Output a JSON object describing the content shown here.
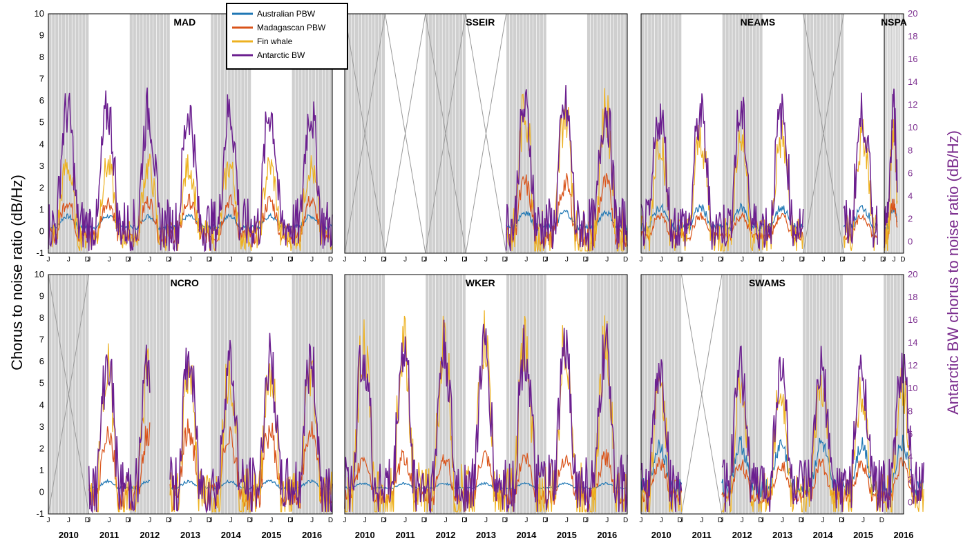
{
  "figure": {
    "ylabel_left": "Chorus to noise ratio (dB/Hz)",
    "ylabel_right": "Antarctic BW chorus to noise ratio (dB/Hz)",
    "right_axis_color": "#7b2d8e"
  },
  "chart_data": {
    "type": "line",
    "x_unit": "month",
    "years": [
      "2010",
      "2011",
      "2012",
      "2013",
      "2014",
      "2015",
      "2016"
    ],
    "month_ticks": [
      "J",
      "J",
      "D"
    ],
    "ylim_left": [
      -1,
      10
    ],
    "ylim_right": [
      -1,
      20
    ],
    "yticks_left": [
      "-1",
      "0",
      "1",
      "2",
      "3",
      "4",
      "5",
      "6",
      "7",
      "8",
      "9",
      "10"
    ],
    "yticks_right": [
      "0",
      "2",
      "4",
      "6",
      "8",
      "10",
      "12",
      "14",
      "16",
      "18",
      "20"
    ],
    "legend": [
      {
        "name": "Australian PBW",
        "color": "#1f77b4"
      },
      {
        "name": "Madagascan PBW",
        "color": "#d95319"
      },
      {
        "name": "Fin whale",
        "color": "#edb120"
      },
      {
        "name": "Antarctic BW",
        "color": "#6b1f8f"
      }
    ],
    "panels": [
      {
        "name": "MAD",
        "coverage": [
          [
            0,
            84
          ]
        ],
        "amplitude": [
          0.5,
          1.6,
          3.2,
          5.5
        ]
      },
      {
        "name": "SSEIR",
        "coverage": [
          [
            48,
            84
          ]
        ],
        "amplitude": [
          0.7,
          2.4,
          5.8,
          5.6
        ]
      },
      {
        "name": "NEAMS",
        "coverage": [
          [
            0,
            48
          ],
          [
            60,
            70
          ]
        ],
        "amplitude": [
          0.9,
          0.9,
          4.5,
          5.3
        ]
      },
      {
        "name": "NSPA",
        "coverage": [
          [
            72,
            80
          ]
        ],
        "amplitude": [
          0.8,
          1.5,
          5.0,
          5.5
        ]
      },
      {
        "name": "NCRO",
        "coverage": [
          [
            12,
            30
          ],
          [
            36,
            84
          ]
        ],
        "amplitude": [
          0.3,
          3.0,
          5.8,
          6.0
        ]
      },
      {
        "name": "WKER",
        "coverage": [
          [
            0,
            84
          ]
        ],
        "amplitude": [
          0.2,
          1.8,
          7.0,
          6.5
        ]
      },
      {
        "name": "SWAMS",
        "coverage": [
          [
            0,
            12
          ],
          [
            24,
            84
          ]
        ],
        "amplitude": [
          2.0,
          1.5,
          5.0,
          5.5
        ]
      }
    ]
  }
}
